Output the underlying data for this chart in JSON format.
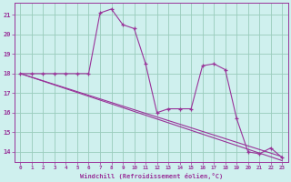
{
  "xlabel": "Windchill (Refroidissement éolien,°C)",
  "bg_color": "#cff0ee",
  "line_color": "#993399",
  "grid_color": "#99ccbb",
  "hours": [
    0,
    1,
    2,
    3,
    4,
    5,
    6,
    7,
    8,
    9,
    10,
    11,
    12,
    13,
    14,
    15,
    16,
    17,
    18,
    19,
    20,
    21,
    22,
    23
  ],
  "temp": [
    18.0,
    18.0,
    18.0,
    18.0,
    18.0,
    18.0,
    18.0,
    21.1,
    21.3,
    20.5,
    20.3,
    18.5,
    16.0,
    16.2,
    16.2,
    16.2,
    18.4,
    18.5,
    18.2,
    15.7,
    14.0,
    13.9,
    14.2,
    13.7
  ],
  "line1_start": 18.0,
  "line1_end": 13.75,
  "line2_start": 18.0,
  "line2_end": 13.55,
  "ylim": [
    13.5,
    21.6
  ],
  "yticks": [
    14,
    15,
    16,
    17,
    18,
    19,
    20,
    21
  ],
  "xlim": [
    -0.5,
    23.5
  ]
}
